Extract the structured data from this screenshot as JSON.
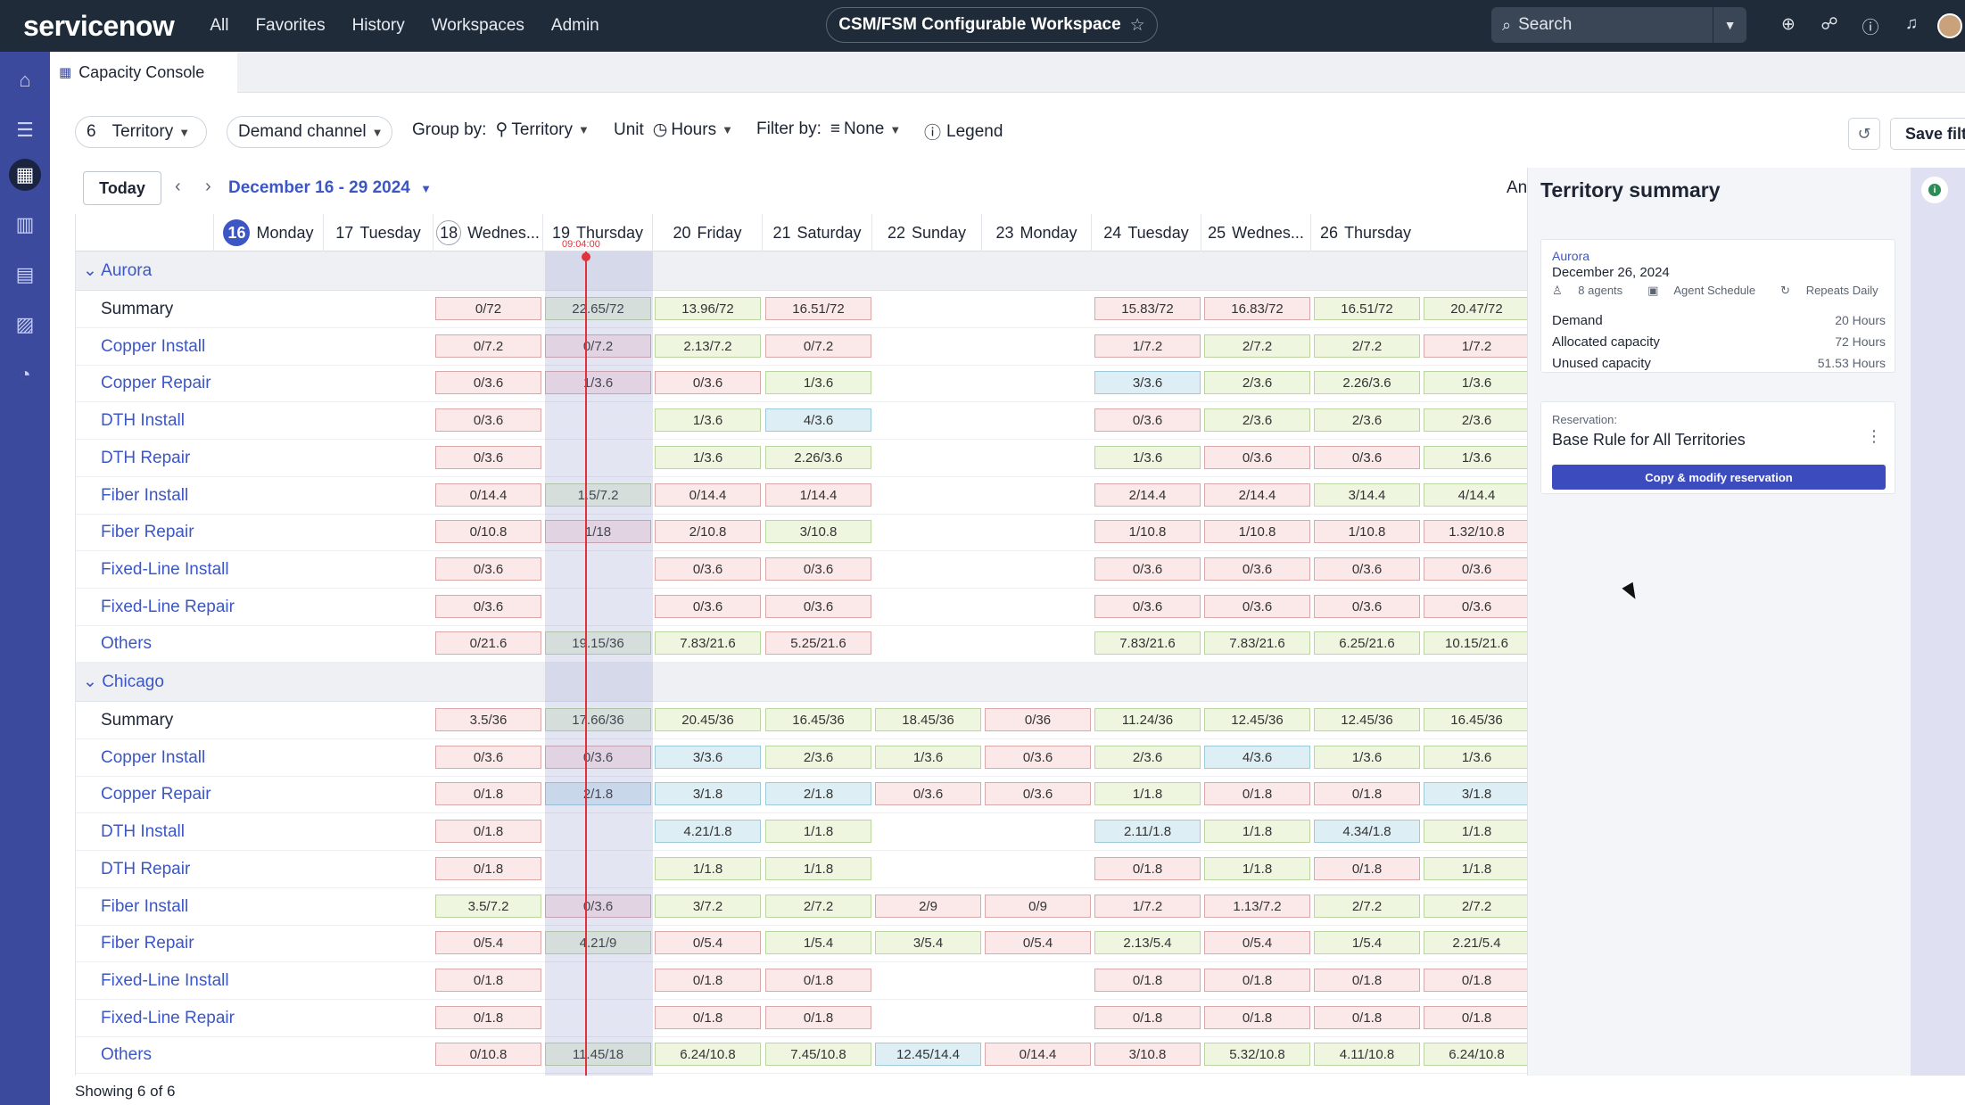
{
  "topbar": {
    "logo": "servicenow",
    "nav": [
      "All",
      "Favorites",
      "History",
      "Workspaces",
      "Admin"
    ],
    "workspace": "CSM/FSM Configurable Workspace",
    "search_placeholder": "Search"
  },
  "tab": {
    "label": "Capacity Console"
  },
  "filters": {
    "territory_count": "6",
    "territory_label": "Territory",
    "demand_label": "Demand channel",
    "group_by_label": "Group by:",
    "group_by_value": "Territory",
    "unit_label": "Unit",
    "unit_value": "Hours",
    "filter_by_label": "Filter by:",
    "filter_by_value": "None",
    "legend_label": "Legend",
    "save_filters": "Save filters"
  },
  "calendar": {
    "today": "Today",
    "range": "December 16 - 29 2024",
    "an": "An",
    "time_marker": "09:04:00",
    "days": [
      {
        "num": "16",
        "name": "Monday"
      },
      {
        "num": "17",
        "name": "Tuesday"
      },
      {
        "num": "18",
        "name": "Wednes..."
      },
      {
        "num": "19",
        "name": "Thursday"
      },
      {
        "num": "20",
        "name": "Friday"
      },
      {
        "num": "21",
        "name": "Saturday"
      },
      {
        "num": "22",
        "name": "Sunday"
      },
      {
        "num": "23",
        "name": "Monday"
      },
      {
        "num": "24",
        "name": "Tuesday"
      },
      {
        "num": "25",
        "name": "Wednes..."
      },
      {
        "num": "26",
        "name": "Thursday"
      }
    ]
  },
  "groups": [
    {
      "name": "Aurora",
      "rows": [
        {
          "name": "Summary",
          "cells": [
            "",
            "0/72",
            "22.65/72",
            "13.96/72",
            "16.51/72",
            "",
            "",
            "15.83/72",
            "16.83/72",
            "16.51/72",
            "20.47/72"
          ],
          "colors": [
            "",
            "r",
            "g",
            "g",
            "r",
            "",
            "",
            "r",
            "r",
            "g",
            "g"
          ]
        },
        {
          "name": "Copper Install",
          "cells": [
            "",
            "0/7.2",
            "0/7.2",
            "2.13/7.2",
            "0/7.2",
            "",
            "",
            "1/7.2",
            "2/7.2",
            "2/7.2",
            "1/7.2"
          ],
          "colors": [
            "",
            "r",
            "r",
            "g",
            "r",
            "",
            "",
            "r",
            "g",
            "g",
            "r"
          ]
        },
        {
          "name": "Copper Repair",
          "cells": [
            "",
            "0/3.6",
            "1/3.6",
            "0/3.6",
            "1/3.6",
            "",
            "",
            "3/3.6",
            "2/3.6",
            "2.26/3.6",
            "1/3.6"
          ],
          "colors": [
            "",
            "r",
            "r",
            "r",
            "g",
            "",
            "",
            "b",
            "g",
            "g",
            "g"
          ]
        },
        {
          "name": "DTH Install",
          "cells": [
            "",
            "0/3.6",
            "",
            "1/3.6",
            "4/3.6",
            "",
            "",
            "0/3.6",
            "2/3.6",
            "2/3.6",
            "2/3.6"
          ],
          "colors": [
            "",
            "r",
            "",
            "g",
            "b",
            "",
            "",
            "r",
            "g",
            "g",
            "g"
          ]
        },
        {
          "name": "DTH Repair",
          "cells": [
            "",
            "0/3.6",
            "",
            "1/3.6",
            "2.26/3.6",
            "",
            "",
            "1/3.6",
            "0/3.6",
            "0/3.6",
            "1/3.6"
          ],
          "colors": [
            "",
            "r",
            "",
            "g",
            "g",
            "",
            "",
            "g",
            "r",
            "r",
            "g"
          ]
        },
        {
          "name": "Fiber Install",
          "cells": [
            "",
            "0/14.4",
            "1.5/7.2",
            "0/14.4",
            "1/14.4",
            "",
            "",
            "2/14.4",
            "2/14.4",
            "3/14.4",
            "4/14.4"
          ],
          "colors": [
            "",
            "r",
            "g",
            "r",
            "r",
            "",
            "",
            "r",
            "r",
            "g",
            "g"
          ]
        },
        {
          "name": "Fiber Repair",
          "cells": [
            "",
            "0/10.8",
            "1/18",
            "2/10.8",
            "3/10.8",
            "",
            "",
            "1/10.8",
            "1/10.8",
            "1/10.8",
            "1.32/10.8"
          ],
          "colors": [
            "",
            "r",
            "r",
            "r",
            "g",
            "",
            "",
            "r",
            "r",
            "r",
            "r"
          ]
        },
        {
          "name": "Fixed-Line Install",
          "cells": [
            "",
            "0/3.6",
            "",
            "0/3.6",
            "0/3.6",
            "",
            "",
            "0/3.6",
            "0/3.6",
            "0/3.6",
            "0/3.6"
          ],
          "colors": [
            "",
            "r",
            "",
            "r",
            "r",
            "",
            "",
            "r",
            "r",
            "r",
            "r"
          ]
        },
        {
          "name": "Fixed-Line Repair",
          "cells": [
            "",
            "0/3.6",
            "",
            "0/3.6",
            "0/3.6",
            "",
            "",
            "0/3.6",
            "0/3.6",
            "0/3.6",
            "0/3.6"
          ],
          "colors": [
            "",
            "r",
            "",
            "r",
            "r",
            "",
            "",
            "r",
            "r",
            "r",
            "r"
          ]
        },
        {
          "name": "Others",
          "cells": [
            "",
            "0/21.6",
            "19.15/36",
            "7.83/21.6",
            "5.25/21.6",
            "",
            "",
            "7.83/21.6",
            "7.83/21.6",
            "6.25/21.6",
            "10.15/21.6"
          ],
          "colors": [
            "",
            "r",
            "g",
            "g",
            "r",
            "",
            "",
            "g",
            "g",
            "g",
            "g"
          ]
        }
      ]
    },
    {
      "name": "Chicago",
      "rows": [
        {
          "name": "Summary",
          "cells": [
            "",
            "3.5/36",
            "17.66/36",
            "20.45/36",
            "16.45/36",
            "18.45/36",
            "0/36",
            "11.24/36",
            "12.45/36",
            "12.45/36",
            "16.45/36"
          ],
          "colors": [
            "",
            "r",
            "g",
            "g",
            "g",
            "g",
            "r",
            "g",
            "g",
            "g",
            "g"
          ]
        },
        {
          "name": "Copper Install",
          "cells": [
            "",
            "0/3.6",
            "0/3.6",
            "3/3.6",
            "2/3.6",
            "1/3.6",
            "0/3.6",
            "2/3.6",
            "4/3.6",
            "1/3.6",
            "1/3.6"
          ],
          "colors": [
            "",
            "r",
            "r",
            "b",
            "g",
            "g",
            "r",
            "g",
            "b",
            "g",
            "g"
          ]
        },
        {
          "name": "Copper Repair",
          "cells": [
            "",
            "0/1.8",
            "2/1.8",
            "3/1.8",
            "2/1.8",
            "0/3.6",
            "0/3.6",
            "1/1.8",
            "0/1.8",
            "0/1.8",
            "3/1.8"
          ],
          "colors": [
            "",
            "r",
            "b",
            "b",
            "b",
            "r",
            "r",
            "g",
            "r",
            "r",
            "b"
          ]
        },
        {
          "name": "DTH Install",
          "cells": [
            "",
            "0/1.8",
            "",
            "4.21/1.8",
            "1/1.8",
            "",
            "",
            "2.11/1.8",
            "1/1.8",
            "4.34/1.8",
            "1/1.8"
          ],
          "colors": [
            "",
            "r",
            "",
            "b",
            "g",
            "",
            "",
            "b",
            "g",
            "b",
            "g"
          ]
        },
        {
          "name": "DTH Repair",
          "cells": [
            "",
            "0/1.8",
            "",
            "1/1.8",
            "1/1.8",
            "",
            "",
            "0/1.8",
            "1/1.8",
            "0/1.8",
            "1/1.8"
          ],
          "colors": [
            "",
            "r",
            "",
            "g",
            "g",
            "",
            "",
            "r",
            "g",
            "r",
            "g"
          ]
        },
        {
          "name": "Fiber Install",
          "cells": [
            "",
            "3.5/7.2",
            "0/3.6",
            "3/7.2",
            "2/7.2",
            "2/9",
            "0/9",
            "1/7.2",
            "1.13/7.2",
            "2/7.2",
            "2/7.2"
          ],
          "colors": [
            "",
            "g",
            "r",
            "g",
            "g",
            "r",
            "r",
            "r",
            "r",
            "g",
            "g"
          ]
        },
        {
          "name": "Fiber Repair",
          "cells": [
            "",
            "0/5.4",
            "4.21/9",
            "0/5.4",
            "1/5.4",
            "3/5.4",
            "0/5.4",
            "2.13/5.4",
            "0/5.4",
            "1/5.4",
            "2.21/5.4"
          ],
          "colors": [
            "",
            "r",
            "g",
            "r",
            "g",
            "g",
            "r",
            "g",
            "r",
            "g",
            "g"
          ]
        },
        {
          "name": "Fixed-Line Install",
          "cells": [
            "",
            "0/1.8",
            "",
            "0/1.8",
            "0/1.8",
            "",
            "",
            "0/1.8",
            "0/1.8",
            "0/1.8",
            "0/1.8"
          ],
          "colors": [
            "",
            "r",
            "",
            "r",
            "r",
            "",
            "",
            "r",
            "r",
            "r",
            "r"
          ]
        },
        {
          "name": "Fixed-Line Repair",
          "cells": [
            "",
            "0/1.8",
            "",
            "0/1.8",
            "0/1.8",
            "",
            "",
            "0/1.8",
            "0/1.8",
            "0/1.8",
            "0/1.8"
          ],
          "colors": [
            "",
            "r",
            "",
            "r",
            "r",
            "",
            "",
            "r",
            "r",
            "r",
            "r"
          ]
        },
        {
          "name": "Others",
          "cells": [
            "",
            "0/10.8",
            "11.45/18",
            "6.24/10.8",
            "7.45/10.8",
            "12.45/14.4",
            "0/14.4",
            "3/10.8",
            "5.32/10.8",
            "4.11/10.8",
            "6.24/10.8"
          ],
          "colors": [
            "",
            "r",
            "g",
            "g",
            "g",
            "b",
            "r",
            "r",
            "g",
            "g",
            "g"
          ]
        }
      ]
    }
  ],
  "panel": {
    "title": "Territory summary",
    "territory": "Aurora",
    "date": "December 26, 2024",
    "agents": "8 agents",
    "agent_schedule": "Agent Schedule",
    "repeats": "Repeats Daily",
    "demand_label": "Demand",
    "demand_value": "20 Hours",
    "allocated_label": "Allocated capacity",
    "allocated_value": "72 Hours",
    "unused_label": "Unused capacity",
    "unused_value": "51.53 Hours",
    "reservation_label": "Reservation:",
    "reservation_name": "Base Rule for All Territories",
    "copy_button": "Copy & modify reservation"
  },
  "footer": {
    "showing": "Showing 6 of 6"
  }
}
